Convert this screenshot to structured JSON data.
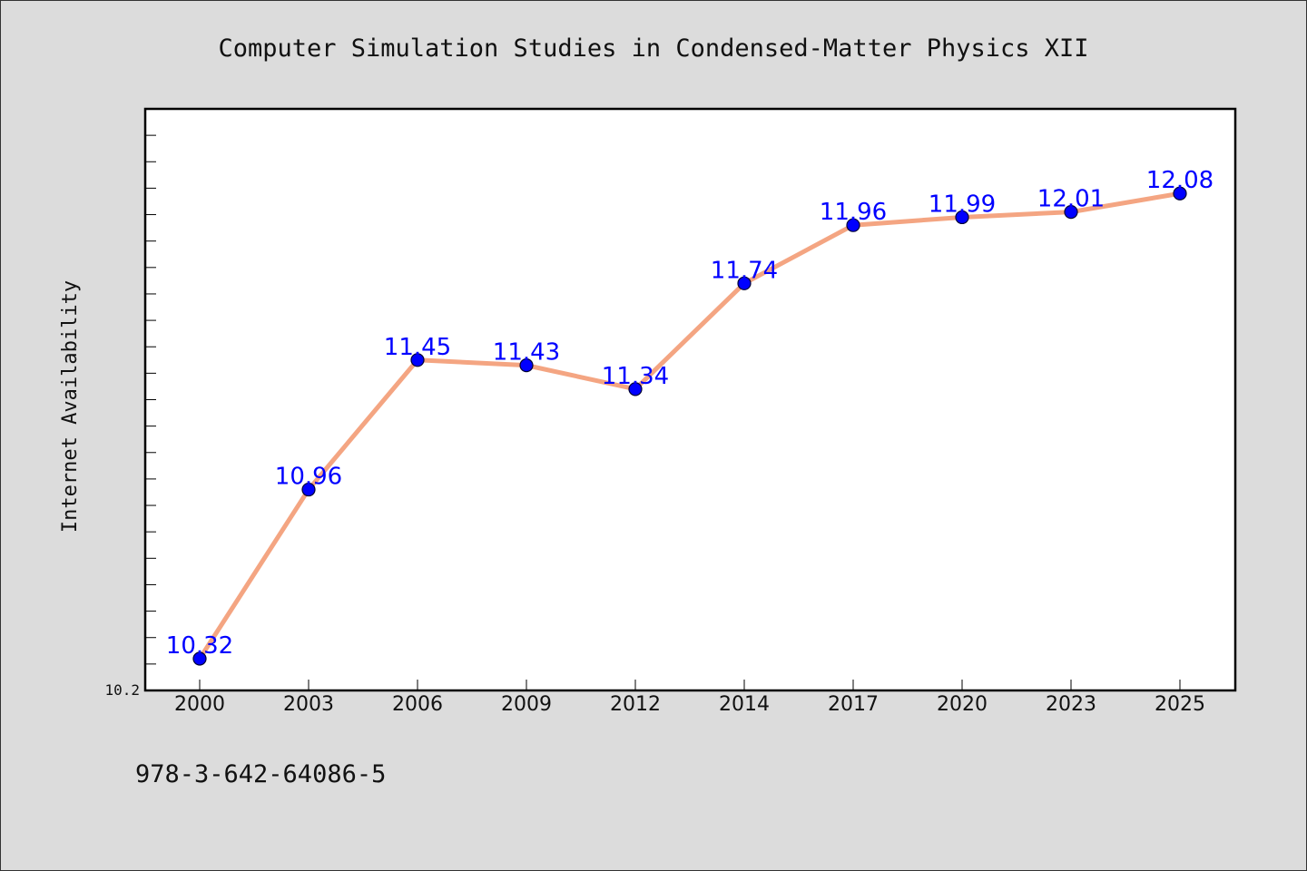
{
  "chart_data": {
    "type": "line",
    "title": "Computer Simulation Studies in Condensed-Matter Physics XII",
    "xlabel": "",
    "ylabel": "Internet Availability",
    "categories": [
      "2000",
      "2003",
      "2006",
      "2009",
      "2012",
      "2014",
      "2017",
      "2020",
      "2023",
      "2025"
    ],
    "series": [
      {
        "values": [
          10.32,
          10.96,
          11.45,
          11.43,
          11.34,
          11.74,
          11.96,
          11.99,
          12.01,
          12.08
        ]
      }
    ],
    "data_labels": [
      "10.32",
      "10.96",
      "11.45",
      "11.43",
      "11.34",
      "11.74",
      "11.96",
      "11.99",
      "12.01",
      "12.08"
    ],
    "ylim": [
      10.2,
      12.4
    ],
    "y_tick_labels": [
      {
        "value": 10.2,
        "label": "10.2"
      }
    ],
    "y_minor_step": 0.1,
    "grid": false,
    "colors": {
      "line": "#f4a582",
      "marker": "#0000ff",
      "label": "#0000ff",
      "plot_bg": "#ffffff",
      "figure_bg": "#dcdcdc"
    }
  },
  "footer": {
    "isbn": "978-3-642-64086-5"
  }
}
